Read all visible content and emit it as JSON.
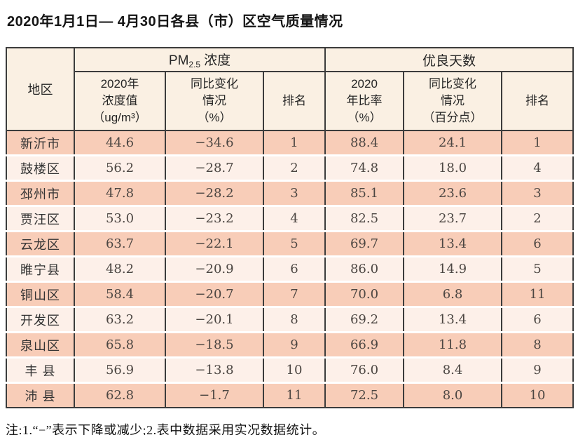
{
  "title": "2020年1月1日— 4月30日各县（市）区空气质量情况",
  "table": {
    "region_header": "地区",
    "group_pm": {
      "prefix": "PM",
      "sub": "2.5",
      "suffix": "浓度"
    },
    "group_good": "优良天数",
    "sub_headers": {
      "pm_value": "2020年\n浓度值\n（ug/m³）",
      "pm_change": "同比变化\n情况\n（%）",
      "pm_rank": "排名",
      "good_ratio": "2020\n年比率\n（%）",
      "good_change": "同比变化\n情况\n（百分点）",
      "good_rank": "排名"
    },
    "rows": [
      {
        "region": "新沂市",
        "pm_value": "44.6",
        "pm_change": "−34.6",
        "pm_rank": "1",
        "good_ratio": "88.4",
        "good_change": "24.1",
        "good_rank": "1"
      },
      {
        "region": "鼓楼区",
        "pm_value": "56.2",
        "pm_change": "−28.7",
        "pm_rank": "2",
        "good_ratio": "74.8",
        "good_change": "18.0",
        "good_rank": "4"
      },
      {
        "region": "邳州市",
        "pm_value": "47.8",
        "pm_change": "−28.2",
        "pm_rank": "3",
        "good_ratio": "85.1",
        "good_change": "23.6",
        "good_rank": "3"
      },
      {
        "region": "贾汪区",
        "pm_value": "53.0",
        "pm_change": "−23.2",
        "pm_rank": "4",
        "good_ratio": "82.5",
        "good_change": "23.7",
        "good_rank": "2"
      },
      {
        "region": "云龙区",
        "pm_value": "63.7",
        "pm_change": "−22.1",
        "pm_rank": "5",
        "good_ratio": "69.7",
        "good_change": "13.4",
        "good_rank": "6"
      },
      {
        "region": "睢宁县",
        "pm_value": "48.2",
        "pm_change": "−20.9",
        "pm_rank": "6",
        "good_ratio": "86.0",
        "good_change": "14.9",
        "good_rank": "5"
      },
      {
        "region": "铜山区",
        "pm_value": "58.4",
        "pm_change": "−20.7",
        "pm_rank": "7",
        "good_ratio": "70.0",
        "good_change": "6.8",
        "good_rank": "11"
      },
      {
        "region": "开发区",
        "pm_value": "63.2",
        "pm_change": "−20.1",
        "pm_rank": "8",
        "good_ratio": "69.2",
        "good_change": "13.4",
        "good_rank": "6"
      },
      {
        "region": "泉山区",
        "pm_value": "65.8",
        "pm_change": "−18.5",
        "pm_rank": "9",
        "good_ratio": "66.9",
        "good_change": "11.8",
        "good_rank": "8"
      },
      {
        "region": "丰 县",
        "pm_value": "56.9",
        "pm_change": "−13.8",
        "pm_rank": "10",
        "good_ratio": "76.0",
        "good_change": "8.4",
        "good_rank": "9"
      },
      {
        "region": "沛 县",
        "pm_value": "62.8",
        "pm_change": "−1.7",
        "pm_rank": "11",
        "good_ratio": "72.5",
        "good_change": "8.0",
        "good_rank": "10"
      }
    ]
  },
  "footnote": "注:1.“−”表示下降或减少;2.表中数据采用实况数据统计。",
  "colors": {
    "row_dark": "#f8cdb8",
    "row_light": "#fdf0e9",
    "header_bg": "#faf0e3",
    "grid_border": "#3c3c3c",
    "row_gap": "#ffffff"
  }
}
